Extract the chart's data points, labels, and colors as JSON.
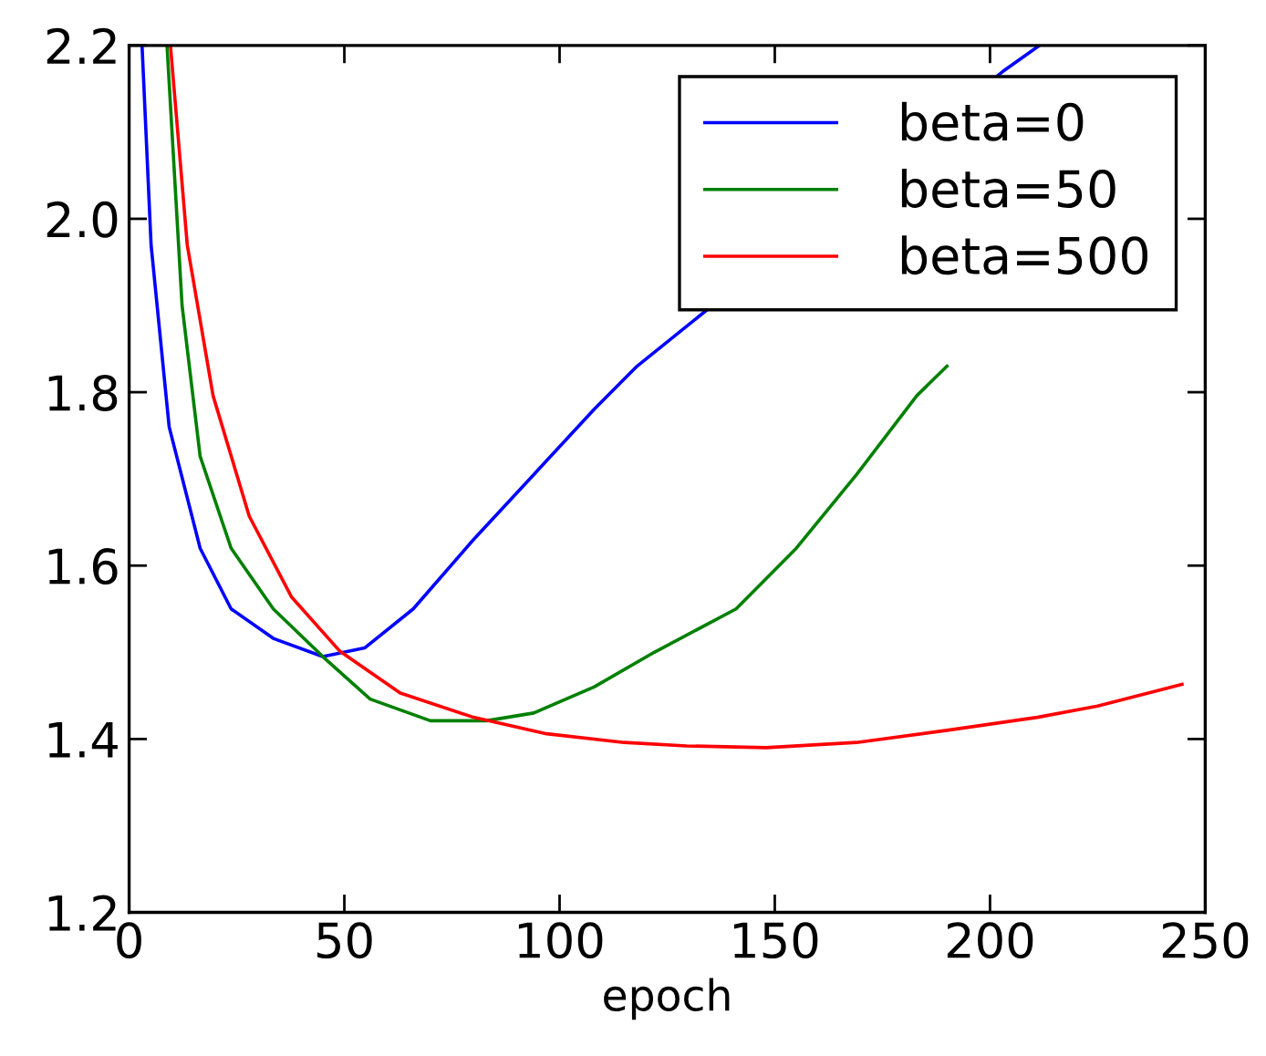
{
  "chart_data": {
    "type": "line",
    "xlabel": "epoch",
    "xlim": [
      0,
      250
    ],
    "ylim": [
      1.2,
      2.2
    ],
    "xticks": [
      0,
      50,
      100,
      150,
      200,
      250
    ],
    "yticks": [
      1.2,
      1.4,
      1.6,
      1.8,
      {
        "value": 2,
        "label": "2.0"
      },
      2.2
    ],
    "grid": false,
    "legend": "top right",
    "line_style": "solid",
    "marker": "none",
    "series": [
      {
        "name": "beta=0",
        "color": "#0000ff",
        "x": [
          3,
          5.1,
          9.3,
          16.5,
          23.7,
          33.5,
          45,
          54.7,
          66,
          80,
          94,
          108,
          118,
          203,
          211.5
        ],
        "values": [
          2.2,
          1.97,
          1.76,
          1.62,
          1.55,
          1.516,
          1.495,
          1.505,
          1.55,
          1.63,
          1.705,
          1.78,
          1.83,
          2.17,
          2.2
        ]
      },
      {
        "name": "beta=50",
        "color": "#008000",
        "x": [
          8.8,
          12.3,
          16.5,
          23.7,
          33.5,
          45,
          56,
          70,
          83,
          94,
          108,
          122,
          141,
          155,
          169,
          183,
          190
        ],
        "values": [
          2.2,
          1.9,
          1.726,
          1.62,
          1.55,
          1.495,
          1.446,
          1.421,
          1.421,
          1.43,
          1.46,
          1.5,
          1.55,
          1.62,
          1.705,
          1.796,
          1.83
        ]
      },
      {
        "name": "beta=500",
        "color": "#ff0000",
        "x": [
          9.6,
          13.5,
          19.5,
          27.9,
          37.7,
          49,
          63,
          80,
          97,
          115,
          129.5,
          148,
          169,
          190,
          211,
          225,
          244.6
        ],
        "values": [
          2.2,
          1.97,
          1.796,
          1.657,
          1.564,
          1.501,
          1.453,
          1.425,
          1.406,
          1.396,
          1.392,
          1.39,
          1.396,
          1.41,
          1.425,
          1.438,
          1.463
        ]
      }
    ]
  }
}
